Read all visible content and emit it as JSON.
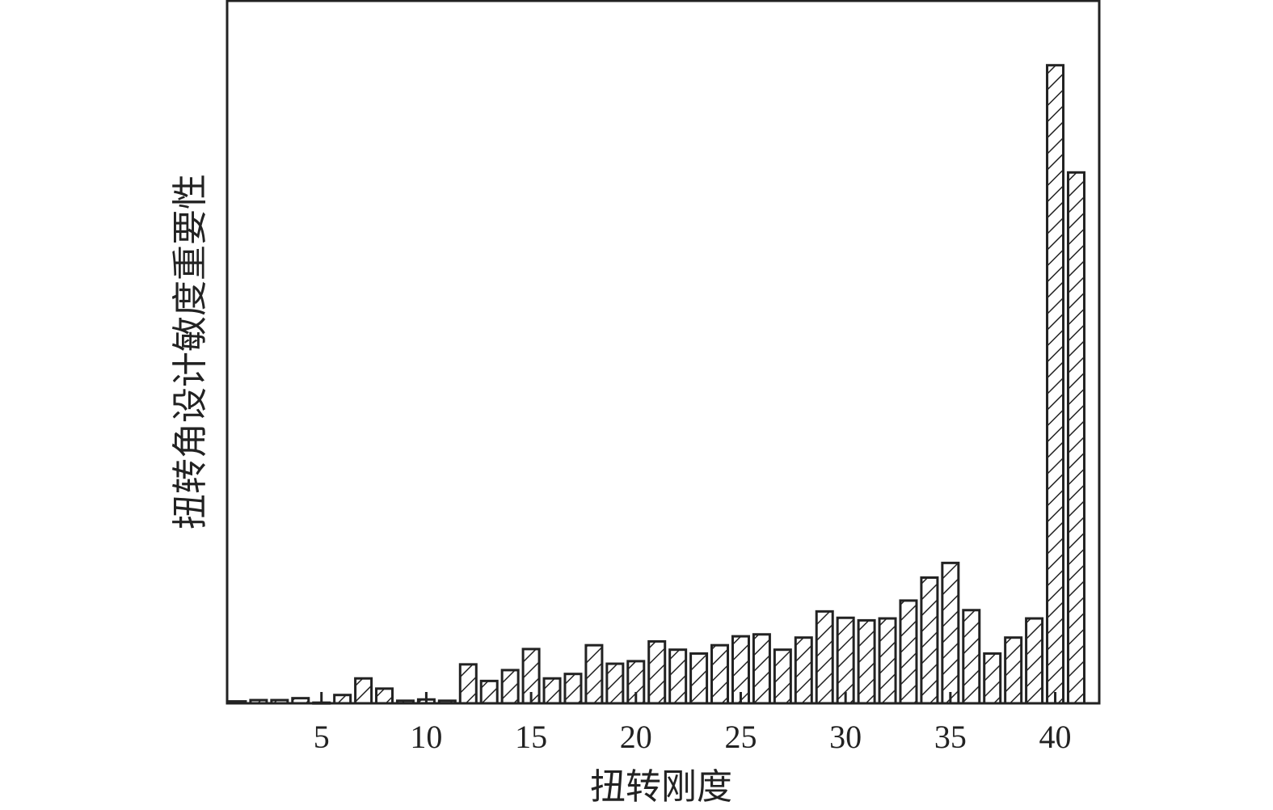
{
  "chart_data": {
    "type": "bar",
    "title": "",
    "xlabel": "扭转刚度",
    "ylabel": "扭转角设计敏度重要性",
    "categories": [
      1,
      2,
      3,
      4,
      5,
      6,
      7,
      8,
      9,
      10,
      11,
      12,
      13,
      14,
      15,
      16,
      17,
      18,
      19,
      20,
      21,
      22,
      23,
      24,
      25,
      26,
      27,
      28,
      29,
      30,
      31,
      32,
      33,
      34,
      35,
      36,
      37,
      38,
      39,
      40,
      41
    ],
    "values": [
      0.003,
      0.005,
      0.005,
      0.008,
      0.001,
      0.013,
      0.039,
      0.023,
      0.004,
      0.006,
      0.004,
      0.061,
      0.035,
      0.052,
      0.085,
      0.039,
      0.046,
      0.091,
      0.062,
      0.066,
      0.097,
      0.084,
      0.078,
      0.091,
      0.105,
      0.108,
      0.084,
      0.103,
      0.144,
      0.134,
      0.13,
      0.133,
      0.161,
      0.197,
      0.22,
      0.146,
      0.078,
      0.103,
      0.133,
      1.0,
      0.832
    ],
    "xticks": [
      5,
      10,
      15,
      20,
      25,
      30,
      35,
      40
    ],
    "xlim": [
      0.5,
      42.1
    ],
    "ylim": [
      0,
      1.101
    ],
    "yticks_shown": false,
    "grid": false,
    "bar_fill": "diagonal-hatch",
    "colors": {
      "edge": "#222222",
      "fill": "#ffffff"
    }
  }
}
